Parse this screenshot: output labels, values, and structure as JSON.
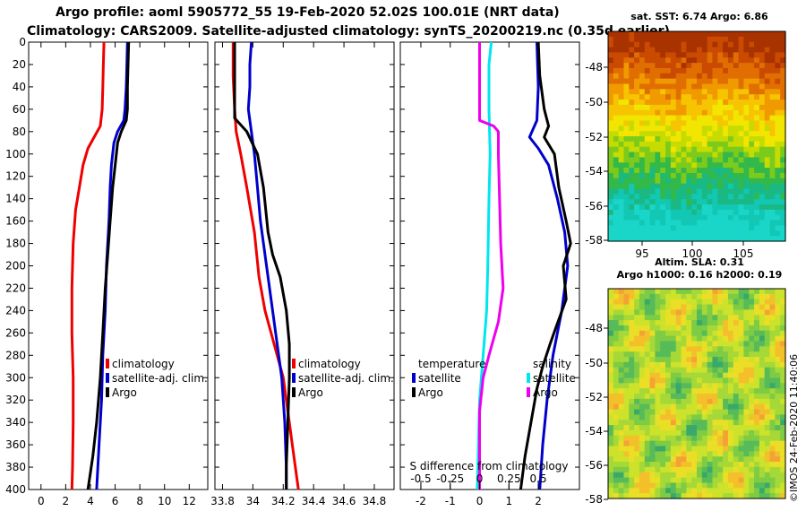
{
  "header": {
    "title_line1": "Argo profile: aoml 5905772_55 19-Feb-2020 52.02S 100.01E (NRT data)",
    "title_line2": "Climatology: CARS2009. Satellite-adjusted climatology: synTS_20200219.nc (0.35d earlier)"
  },
  "footer": {
    "credit": "©IMOS 24-Feb-2020 11:40:06"
  },
  "colors": {
    "climatology": "#ee0000",
    "satellite": "#0000cc",
    "argo": "#000000",
    "sat_sal": "#00e5ee",
    "argo_sal": "#ee00ee"
  },
  "chart_data": [
    {
      "type": "line",
      "name": "temperature",
      "depth_ticks": [
        0,
        20,
        40,
        60,
        80,
        100,
        120,
        140,
        160,
        180,
        200,
        220,
        240,
        260,
        280,
        300,
        320,
        340,
        360,
        380,
        400
      ],
      "x_ticks": [
        "0",
        "2",
        "4",
        "6",
        "8",
        "10",
        "12"
      ],
      "xlim": [
        -1,
        13.5
      ],
      "ylim": [
        0,
        400
      ],
      "legend": [
        "climatology",
        "satellite-adj. clim.",
        "Argo"
      ],
      "series": [
        {
          "name": "climatology",
          "color": "#ee0000",
          "points": [
            [
              5.1,
              0
            ],
            [
              5.05,
              20
            ],
            [
              5.0,
              40
            ],
            [
              4.95,
              60
            ],
            [
              4.8,
              75
            ],
            [
              4.3,
              85
            ],
            [
              3.8,
              95
            ],
            [
              3.4,
              110
            ],
            [
              3.1,
              130
            ],
            [
              2.8,
              150
            ],
            [
              2.6,
              180
            ],
            [
              2.5,
              220
            ],
            [
              2.5,
              260
            ],
            [
              2.6,
              300
            ],
            [
              2.6,
              340
            ],
            [
              2.55,
              380
            ],
            [
              2.5,
              400
            ]
          ]
        },
        {
          "name": "satellite-adj. clim.",
          "color": "#0000cc",
          "points": [
            [
              7.0,
              0
            ],
            [
              6.95,
              20
            ],
            [
              6.9,
              40
            ],
            [
              6.8,
              60
            ],
            [
              6.7,
              70
            ],
            [
              6.2,
              80
            ],
            [
              5.9,
              90
            ],
            [
              5.7,
              110
            ],
            [
              5.6,
              130
            ],
            [
              5.5,
              160
            ],
            [
              5.3,
              200
            ],
            [
              5.2,
              240
            ],
            [
              5.0,
              280
            ],
            [
              4.9,
              320
            ],
            [
              4.7,
              360
            ],
            [
              4.5,
              400
            ]
          ]
        },
        {
          "name": "Argo",
          "color": "#000000",
          "points": [
            [
              7.1,
              0
            ],
            [
              7.05,
              20
            ],
            [
              7.0,
              40
            ],
            [
              7.0,
              60
            ],
            [
              6.9,
              70
            ],
            [
              6.5,
              80
            ],
            [
              6.2,
              90
            ],
            [
              6.0,
              110
            ],
            [
              5.8,
              130
            ],
            [
              5.6,
              160
            ],
            [
              5.4,
              190
            ],
            [
              5.2,
              220
            ],
            [
              5.0,
              260
            ],
            [
              4.8,
              300
            ],
            [
              4.5,
              340
            ],
            [
              4.2,
              370
            ],
            [
              3.8,
              400
            ]
          ]
        }
      ]
    },
    {
      "type": "line",
      "name": "salinity",
      "x_ticks": [
        "33.8",
        "34",
        "34.2",
        "34.4",
        "34.6",
        "34.8"
      ],
      "xlim": [
        33.75,
        34.93
      ],
      "ylim": [
        0,
        400
      ],
      "legend": [
        "climatology",
        "satellite-adj. clim.",
        "Argo"
      ],
      "series": [
        {
          "name": "climatology",
          "color": "#ee0000",
          "points": [
            [
              33.87,
              0
            ],
            [
              33.87,
              30
            ],
            [
              33.88,
              60
            ],
            [
              33.89,
              80
            ],
            [
              33.92,
              100
            ],
            [
              33.96,
              130
            ],
            [
              34.01,
              170
            ],
            [
              34.04,
              210
            ],
            [
              34.08,
              240
            ],
            [
              34.14,
              270
            ],
            [
              34.2,
              300
            ],
            [
              34.23,
              330
            ],
            [
              34.26,
              360
            ],
            [
              34.28,
              380
            ],
            [
              34.3,
              400
            ]
          ]
        },
        {
          "name": "satellite-adj. clim.",
          "color": "#0000cc",
          "points": [
            [
              33.99,
              0
            ],
            [
              33.98,
              20
            ],
            [
              33.98,
              40
            ],
            [
              33.97,
              60
            ],
            [
              33.99,
              80
            ],
            [
              34.01,
              100
            ],
            [
              34.03,
              130
            ],
            [
              34.05,
              160
            ],
            [
              34.09,
              200
            ],
            [
              34.14,
              250
            ],
            [
              34.19,
              300
            ],
            [
              34.21,
              340
            ],
            [
              34.22,
              380
            ],
            [
              34.22,
              400
            ]
          ]
        },
        {
          "name": "Argo",
          "color": "#000000",
          "points": [
            [
              33.88,
              0
            ],
            [
              33.88,
              30
            ],
            [
              33.88,
              60
            ],
            [
              33.88,
              68
            ],
            [
              33.96,
              80
            ],
            [
              34.03,
              100
            ],
            [
              34.07,
              130
            ],
            [
              34.1,
              170
            ],
            [
              34.13,
              190
            ],
            [
              34.18,
              210
            ],
            [
              34.22,
              240
            ],
            [
              34.24,
              270
            ],
            [
              34.24,
              300
            ],
            [
              34.23,
              340
            ],
            [
              34.22,
              380
            ],
            [
              34.22,
              400
            ]
          ]
        }
      ]
    },
    {
      "type": "line",
      "name": "difference",
      "x_ticks": [
        "-2",
        "-1",
        "0",
        "1",
        "2"
      ],
      "xlim": [
        -2.7,
        3.4
      ],
      "s_ticks": [
        "-0.5",
        "-0.25",
        "0",
        "0.25",
        "0.5"
      ],
      "s_lim": [
        -0.675,
        0.85
      ],
      "s_label": "S difference from climatology",
      "ylim": [
        0,
        400
      ],
      "legend_temperature": {
        "title": "temperature",
        "items": [
          "satellite",
          "Argo"
        ]
      },
      "legend_salinity": {
        "title": "salinity",
        "items": [
          "satellite",
          "Argo"
        ]
      },
      "series": [
        {
          "name": "temperature satellite",
          "color": "#0000cc",
          "axis": "T",
          "points": [
            [
              1.95,
              0
            ],
            [
              2.0,
              40
            ],
            [
              1.95,
              70
            ],
            [
              1.7,
              85
            ],
            [
              2.0,
              95
            ],
            [
              2.35,
              110
            ],
            [
              2.65,
              140
            ],
            [
              2.9,
              170
            ],
            [
              3.0,
              200
            ],
            [
              2.8,
              240
            ],
            [
              2.5,
              280
            ],
            [
              2.3,
              320
            ],
            [
              2.15,
              360
            ],
            [
              2.05,
              400
            ]
          ]
        },
        {
          "name": "temperature Argo",
          "color": "#000000",
          "axis": "T",
          "points": [
            [
              2.0,
              0
            ],
            [
              2.05,
              30
            ],
            [
              2.2,
              60
            ],
            [
              2.35,
              75
            ],
            [
              2.2,
              85
            ],
            [
              2.55,
              100
            ],
            [
              2.7,
              130
            ],
            [
              2.95,
              160
            ],
            [
              3.1,
              180
            ],
            [
              2.85,
              200
            ],
            [
              2.95,
              230
            ],
            [
              2.6,
              255
            ],
            [
              2.4,
              270
            ],
            [
              2.15,
              290
            ],
            [
              1.95,
              310
            ],
            [
              1.75,
              340
            ],
            [
              1.55,
              370
            ],
            [
              1.4,
              400
            ]
          ]
        },
        {
          "name": "salinity satellite",
          "color": "#00e5ee",
          "axis": "S",
          "points": [
            [
              0.1,
              0
            ],
            [
              0.08,
              20
            ],
            [
              0.08,
              60
            ],
            [
              0.09,
              100
            ],
            [
              0.08,
              140
            ],
            [
              0.07,
              200
            ],
            [
              0.06,
              240
            ],
            [
              0.03,
              280
            ],
            [
              0.0,
              320
            ],
            [
              -0.01,
              360
            ],
            [
              -0.02,
              400
            ]
          ]
        },
        {
          "name": "salinity Argo",
          "color": "#ee00ee",
          "axis": "S",
          "points": [
            [
              0.0,
              0
            ],
            [
              0.0,
              60
            ],
            [
              0.0,
              70
            ],
            [
              0.12,
              75
            ],
            [
              0.16,
              80
            ],
            [
              0.16,
              100
            ],
            [
              0.17,
              140
            ],
            [
              0.18,
              180
            ],
            [
              0.2,
              220
            ],
            [
              0.16,
              250
            ],
            [
              0.08,
              280
            ],
            [
              0.03,
              300
            ],
            [
              0.0,
              330
            ],
            [
              0.0,
              370
            ],
            [
              0.0,
              400
            ]
          ]
        }
      ]
    },
    {
      "type": "heatmap",
      "name": "sst_map",
      "title": "sat. SST: 6.74 Argo: 6.86",
      "x_ticks": [
        "95",
        "100",
        "105"
      ],
      "y_ticks": [
        "-48",
        "-50",
        "-52",
        "-54",
        "-56",
        "-58"
      ]
    },
    {
      "type": "heatmap",
      "name": "sla_map",
      "title_line1": "Altim. SLA: 0.31",
      "title_line2": "Argo h1000: 0.16 h2000: 0.19",
      "y_ticks": [
        "-48",
        "-50",
        "-52",
        "-54",
        "-56",
        "-58"
      ]
    }
  ]
}
